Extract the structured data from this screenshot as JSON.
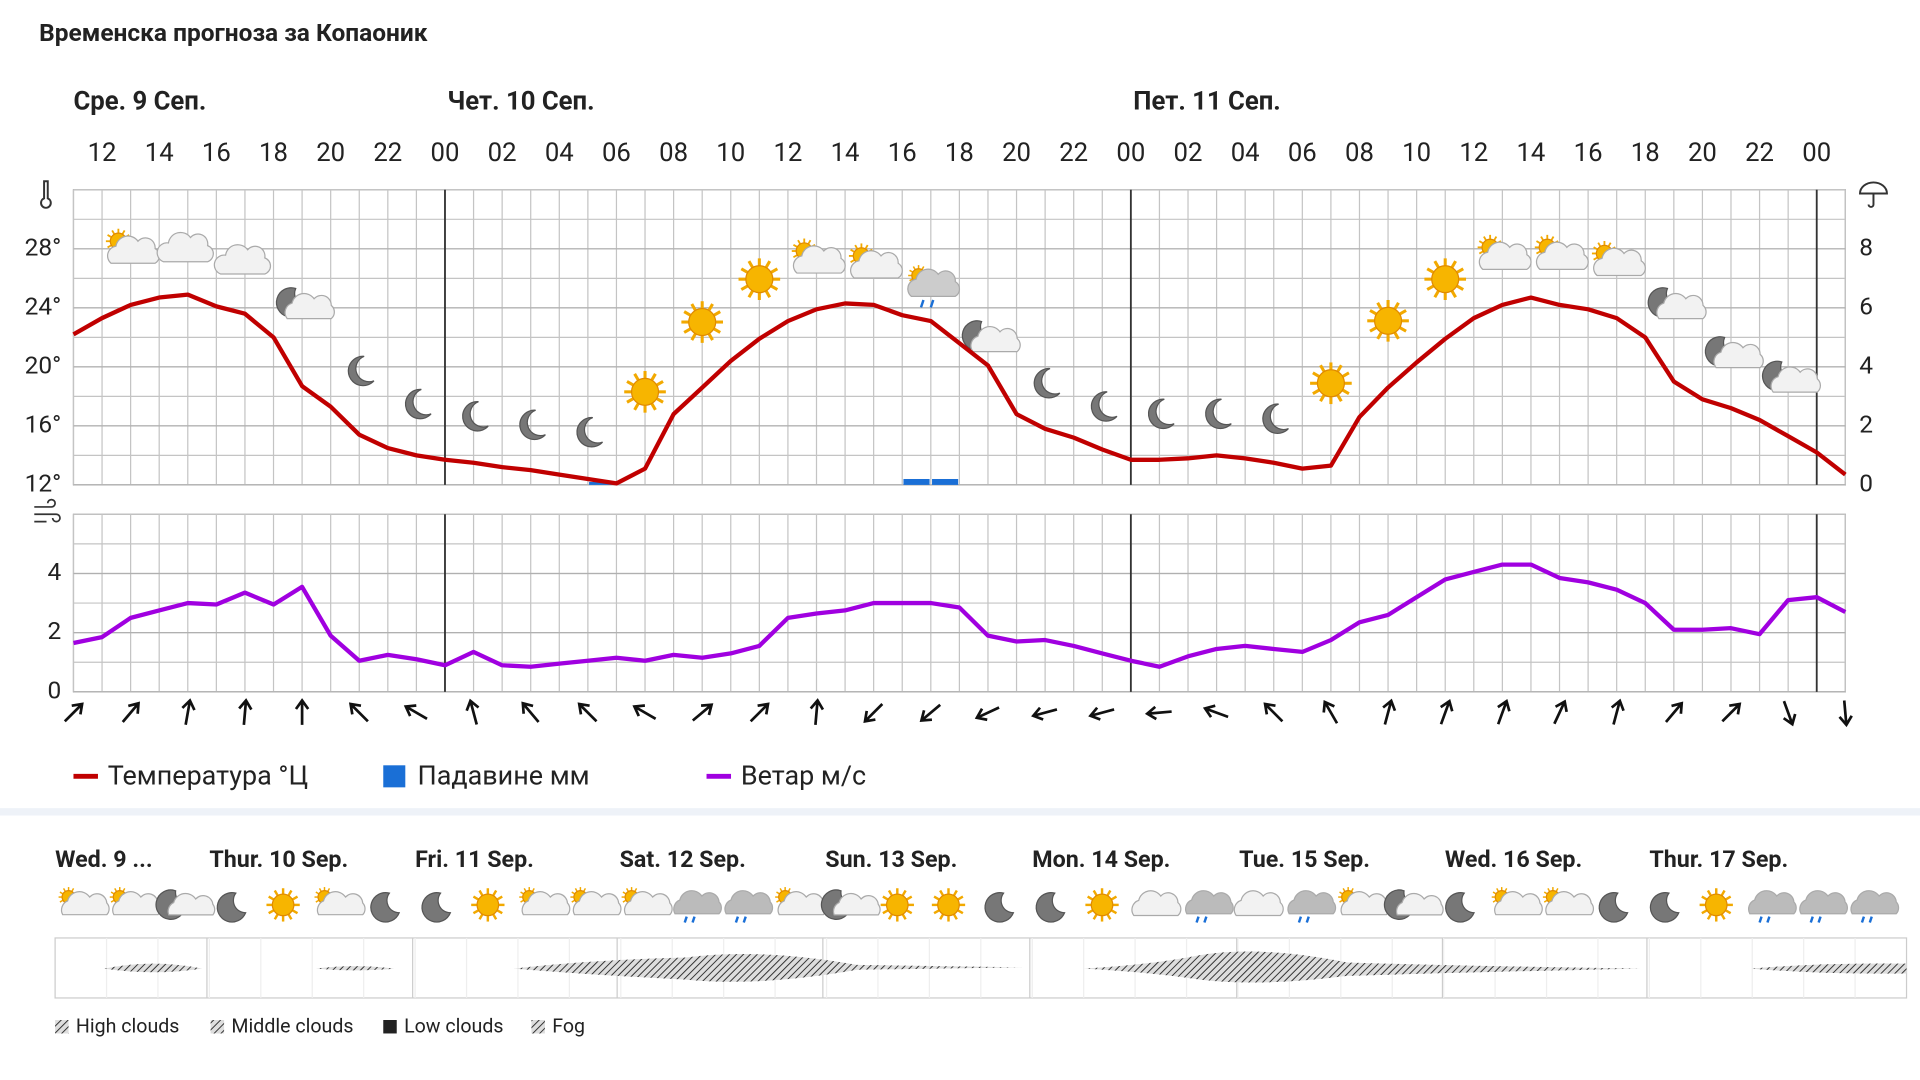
{
  "title": "Временска прогноза за Копаоник",
  "chart_data": [
    {
      "type": "line",
      "day_labels": [
        "Сре. 9 Сеп.",
        "Чет. 10 Сеп.",
        "Пет. 11 Сеп."
      ],
      "x": [
        11,
        12,
        13,
        14,
        15,
        16,
        17,
        18,
        19,
        20,
        21,
        22,
        23,
        24,
        25,
        26,
        27,
        28,
        29,
        30,
        31,
        32,
        33,
        34,
        35,
        36,
        37,
        38,
        39,
        40,
        41,
        42,
        43,
        44,
        45,
        46,
        47,
        48,
        49,
        50,
        51,
        52,
        53,
        54,
        55,
        56,
        57,
        58,
        59,
        60,
        61,
        62,
        63,
        64,
        65,
        66,
        67,
        68,
        69,
        70,
        71,
        72,
        73
      ],
      "xlim": [
        11,
        73
      ],
      "xticks": [
        {
          "value": 12,
          "label": "12"
        },
        {
          "value": 14,
          "label": "14"
        },
        {
          "value": 16,
          "label": "16"
        },
        {
          "value": 18,
          "label": "18"
        },
        {
          "value": 20,
          "label": "20"
        },
        {
          "value": 22,
          "label": "22"
        },
        {
          "value": 24,
          "label": "00"
        },
        {
          "value": 26,
          "label": "02"
        },
        {
          "value": 28,
          "label": "04"
        },
        {
          "value": 30,
          "label": "06"
        },
        {
          "value": 32,
          "label": "08"
        },
        {
          "value": 34,
          "label": "10"
        },
        {
          "value": 36,
          "label": "12"
        },
        {
          "value": 38,
          "label": "14"
        },
        {
          "value": 40,
          "label": "16"
        },
        {
          "value": 42,
          "label": "18"
        },
        {
          "value": 44,
          "label": "20"
        },
        {
          "value": 46,
          "label": "22"
        },
        {
          "value": 48,
          "label": "00"
        },
        {
          "value": 50,
          "label": "02"
        },
        {
          "value": 52,
          "label": "04"
        },
        {
          "value": 54,
          "label": "06"
        },
        {
          "value": 56,
          "label": "08"
        },
        {
          "value": 58,
          "label": "10"
        },
        {
          "value": 60,
          "label": "12"
        },
        {
          "value": 62,
          "label": "14"
        },
        {
          "value": 64,
          "label": "16"
        },
        {
          "value": 66,
          "label": "18"
        },
        {
          "value": 68,
          "label": "20"
        },
        {
          "value": 70,
          "label": "22"
        },
        {
          "value": 72,
          "label": "00"
        }
      ],
      "ylim": [
        12,
        32
      ],
      "yticks": [
        {
          "value": 12,
          "label": "12°"
        },
        {
          "value": 16,
          "label": "16°"
        },
        {
          "value": 20,
          "label": "20°"
        },
        {
          "value": 24,
          "label": "24°"
        },
        {
          "value": 28,
          "label": "28°"
        }
      ],
      "y2lim": [
        0,
        10
      ],
      "y2ticks": [
        0,
        2,
        4,
        6,
        8
      ],
      "grid": true,
      "series": [
        {
          "name": "Температура °Ц",
          "color": "#c00000",
          "values": [
            22.2,
            23.3,
            24.2,
            24.7,
            24.9,
            24.1,
            23.6,
            22.0,
            18.7,
            17.3,
            15.4,
            14.5,
            14.0,
            13.7,
            13.5,
            13.2,
            13.0,
            12.7,
            12.4,
            12.1,
            13.1,
            16.8,
            18.6,
            20.4,
            21.9,
            23.1,
            23.9,
            24.3,
            24.2,
            23.5,
            23.1,
            21.6,
            20.1,
            16.8,
            15.8,
            15.2,
            14.4,
            13.7,
            13.7,
            13.8,
            14.0,
            13.8,
            13.5,
            13.1,
            13.3,
            16.6,
            18.6,
            20.3,
            21.9,
            23.3,
            24.2,
            24.7,
            24.2,
            23.9,
            23.3,
            22.0,
            19.0,
            17.8,
            17.2,
            16.4,
            15.3,
            14.2,
            12.7
          ]
        },
        {
          "name": "Падавине мм",
          "color": "#1a6fd6",
          "type": "bar",
          "axis": "y2",
          "values": [
            0,
            0,
            0,
            0,
            0,
            0,
            0,
            0,
            0,
            0,
            0,
            0,
            0,
            0,
            0,
            0,
            0,
            0,
            0,
            0.1,
            0,
            0,
            0,
            0,
            0,
            0,
            0,
            0,
            0,
            0,
            0.2,
            0.2,
            0,
            0,
            0,
            0,
            0,
            0,
            0,
            0,
            0,
            0,
            0,
            0,
            0,
            0,
            0,
            0,
            0,
            0,
            0,
            0,
            0,
            0,
            0,
            0,
            0,
            0,
            0,
            0,
            0,
            0,
            0
          ]
        }
      ]
    },
    {
      "type": "line",
      "x": [
        11,
        12,
        13,
        14,
        15,
        16,
        17,
        18,
        19,
        20,
        21,
        22,
        23,
        24,
        25,
        26,
        27,
        28,
        29,
        30,
        31,
        32,
        33,
        34,
        35,
        36,
        37,
        38,
        39,
        40,
        41,
        42,
        43,
        44,
        45,
        46,
        47,
        48,
        49,
        50,
        51,
        52,
        53,
        54,
        55,
        56,
        57,
        58,
        59,
        60,
        61,
        62,
        63,
        64,
        65,
        66,
        67,
        68,
        69,
        70,
        71,
        72,
        73
      ],
      "xlim": [
        11,
        73
      ],
      "ylim": [
        0,
        6
      ],
      "yticks": [
        0,
        2,
        4
      ],
      "grid": true,
      "series": [
        {
          "name": "Ветар м/с",
          "color": "#a000e0",
          "values": [
            1.65,
            1.85,
            2.5,
            2.75,
            3.0,
            2.95,
            3.35,
            2.95,
            3.55,
            1.9,
            1.05,
            1.25,
            1.1,
            0.9,
            1.35,
            0.9,
            0.85,
            0.95,
            1.05,
            1.15,
            1.05,
            1.25,
            1.15,
            1.3,
            1.55,
            2.5,
            2.65,
            2.75,
            3.0,
            3.0,
            3.0,
            2.85,
            1.9,
            1.7,
            1.75,
            1.55,
            1.3,
            1.05,
            0.85,
            1.2,
            1.45,
            1.55,
            1.45,
            1.35,
            1.75,
            2.35,
            2.6,
            3.2,
            3.8,
            4.05,
            4.3,
            4.3,
            3.85,
            3.7,
            3.45,
            3.0,
            2.1,
            2.1,
            2.15,
            1.95,
            3.1,
            3.2,
            2.7
          ]
        }
      ],
      "wind_direction": [
        45,
        40,
        10,
        5,
        0,
        315,
        300,
        345,
        320,
        315,
        300,
        50,
        45,
        5,
        225,
        230,
        245,
        255,
        255,
        265,
        290,
        315,
        330,
        15,
        20,
        20,
        25,
        15,
        40,
        45,
        160,
        175
      ]
    }
  ],
  "forecast": {
    "days": [
      "Wed. 9 ...",
      "Thur. 10 Sep.",
      "Fri. 11 Sep.",
      "Sat. 12 Sep.",
      "Sun. 13 Sep.",
      "Mon. 14 Sep.",
      "Tue. 15 Sep.",
      "Wed. 16 Sep.",
      "Thur. 17 Sep."
    ],
    "cloud_legend": [
      "High clouds",
      "Middle clouds",
      "Low clouds",
      "Fog"
    ]
  }
}
